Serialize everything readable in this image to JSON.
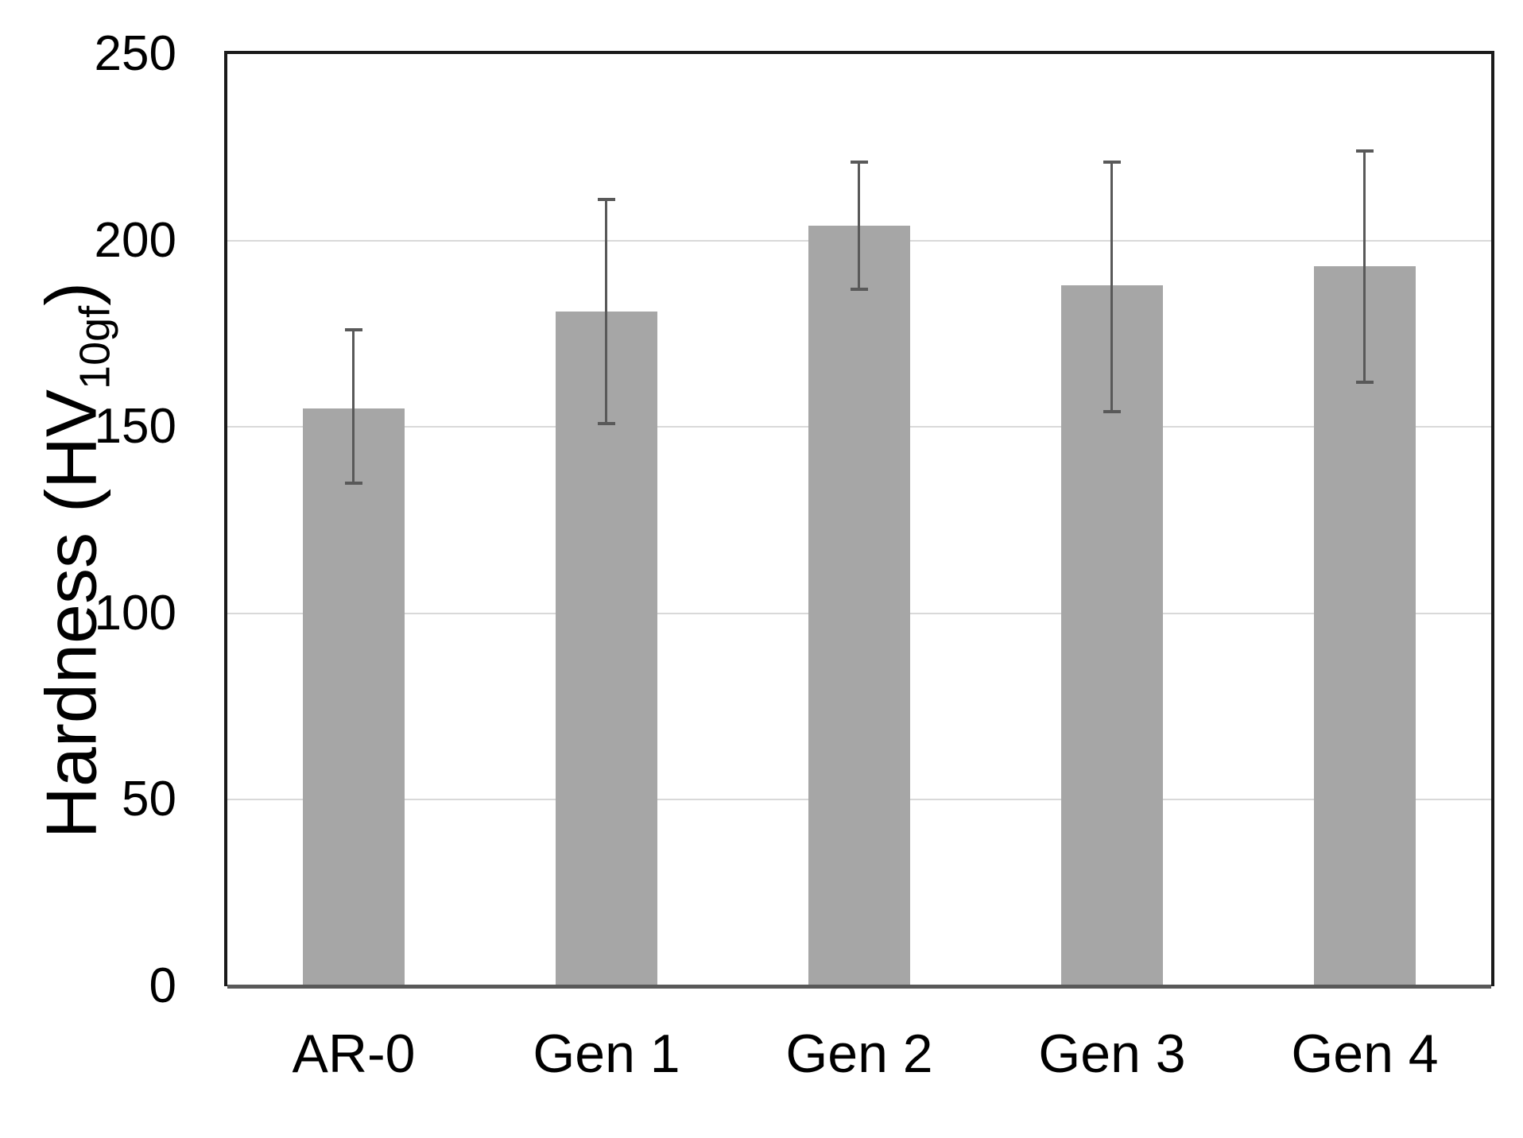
{
  "chart_data": {
    "type": "bar",
    "title": "",
    "categories": [
      "AR-0",
      "Gen 1",
      "Gen 2",
      "Gen 3",
      "Gen 4"
    ],
    "values": [
      155,
      181,
      204,
      188,
      193
    ],
    "error_low": [
      135,
      151,
      187,
      154,
      162
    ],
    "error_high": [
      176,
      211,
      221,
      221,
      224
    ],
    "xlabel": "",
    "ylabel": "Hardness (HV10gf)",
    "ylim": [
      0,
      250
    ],
    "yticks": [
      0,
      50,
      100,
      150,
      200,
      250
    ],
    "grid": "horizontal",
    "legend": "none",
    "bar_gap_ratio": 0.6
  },
  "y_axis": {
    "title_main": "Hardness (HV",
    "title_sub": "10gf",
    "title_end": ")",
    "tick_labels": [
      "0",
      "50",
      "100",
      "150",
      "200",
      "250"
    ]
  },
  "colors": {
    "background": "#ffffff",
    "bar_fill": "#a6a6a6",
    "error_bar": "#595959",
    "gridline": "#d9d9d9",
    "plot_border": "#1a1a1a",
    "x_axis_line": "#595959",
    "text": "#000000"
  }
}
